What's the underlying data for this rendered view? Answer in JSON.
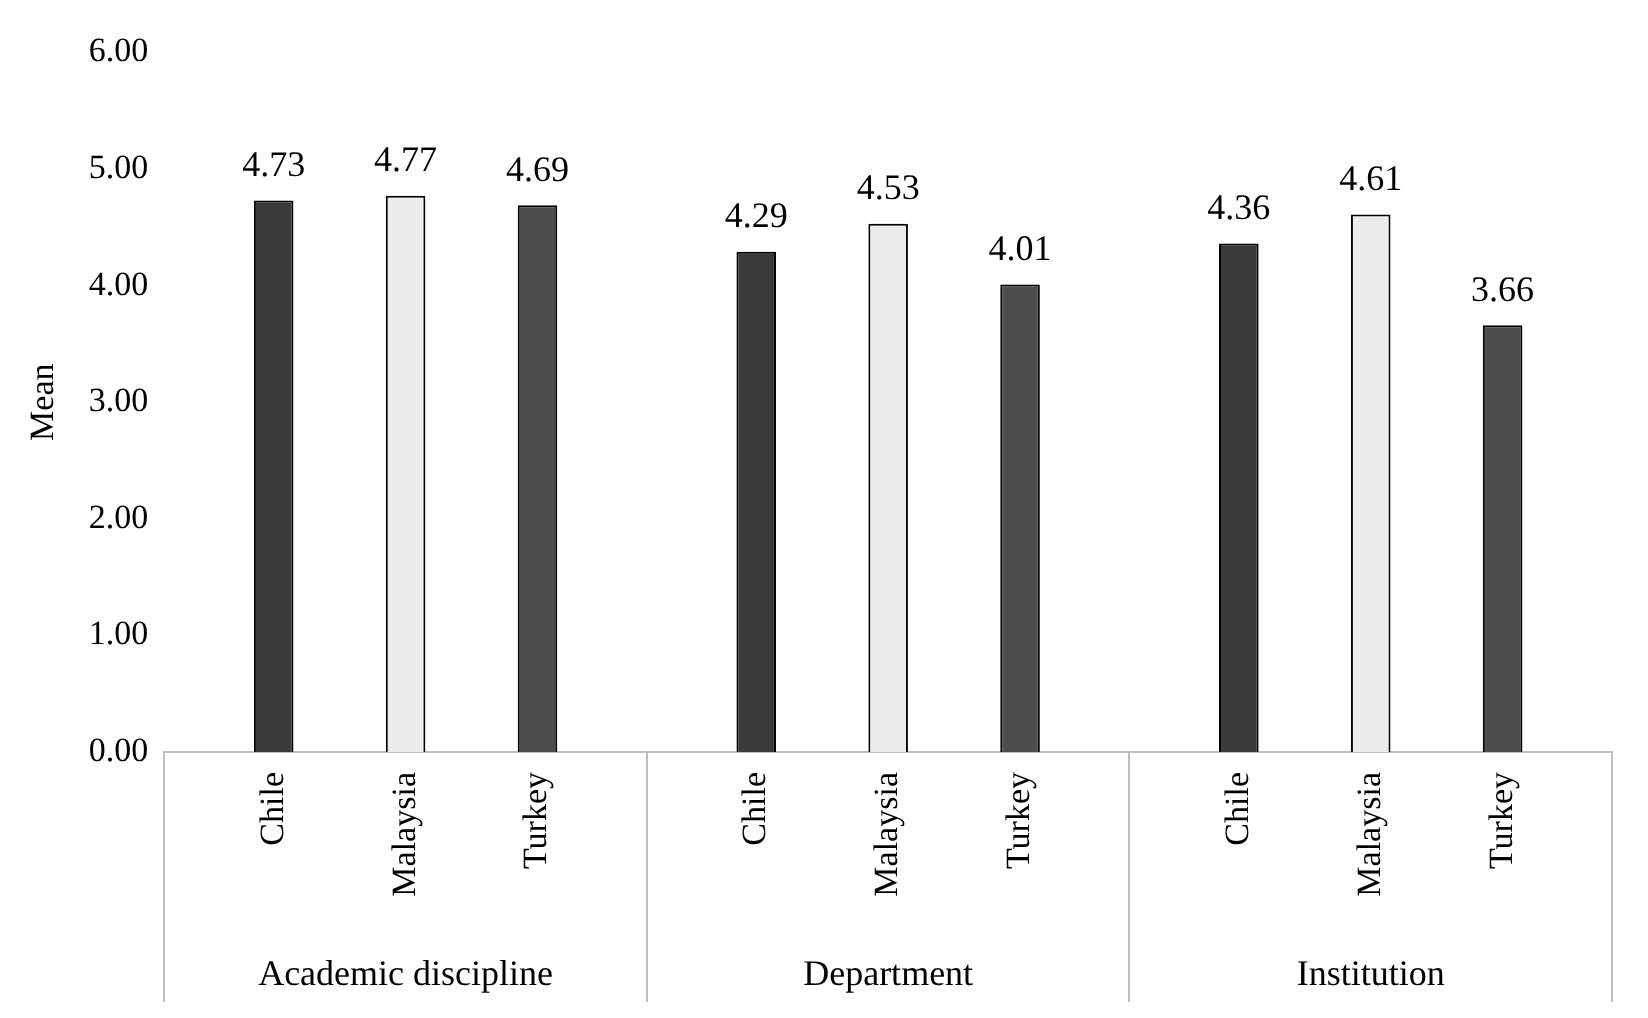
{
  "chart_data": {
    "type": "bar",
    "ylabel": "Mean",
    "categories": [
      "Academic discipline",
      "Department",
      "Institution"
    ],
    "series": [
      {
        "name": "Chile",
        "color": "#3a3a3a",
        "values": [
          4.73,
          4.29,
          4.36
        ]
      },
      {
        "name": "Malaysia",
        "color": "#ececec",
        "values": [
          4.77,
          4.53,
          4.61
        ]
      },
      {
        "name": "Turkey",
        "color": "#4d4d4d",
        "values": [
          4.69,
          4.01,
          3.66
        ]
      }
    ],
    "ylim": [
      0,
      6
    ],
    "yticks": [
      {
        "value": 0,
        "label": "0.00"
      },
      {
        "value": 1,
        "label": "1.00"
      },
      {
        "value": 2,
        "label": "2.00"
      },
      {
        "value": 3,
        "label": "3.00"
      },
      {
        "value": 4,
        "label": "4.00"
      },
      {
        "value": 5,
        "label": "5.00"
      },
      {
        "value": 6,
        "label": "6.00"
      }
    ],
    "grid": false,
    "legend": false,
    "data_labels": true
  }
}
